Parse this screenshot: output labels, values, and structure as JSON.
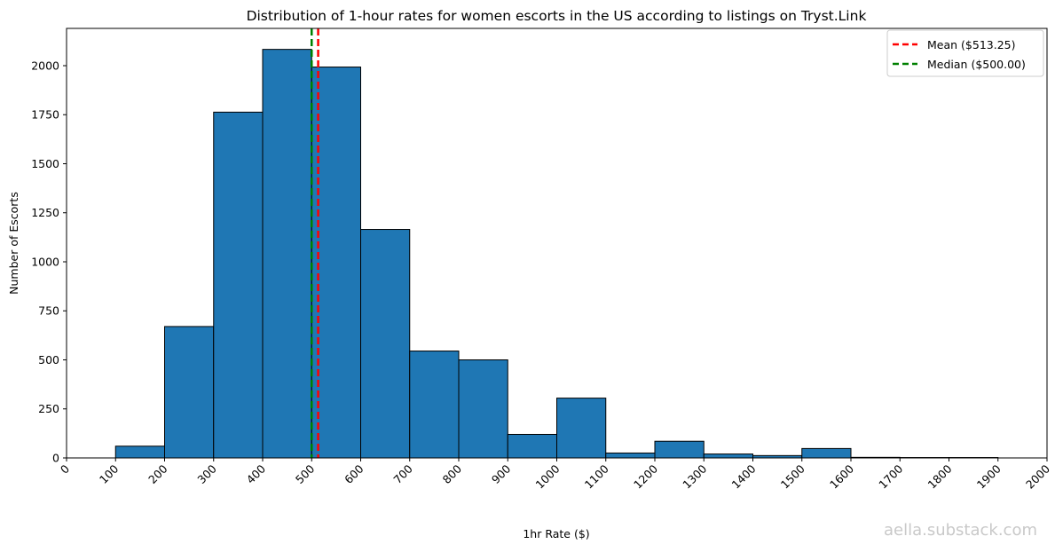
{
  "watermark": "aella.substack.com",
  "chart_data": {
    "type": "bar",
    "title": "Distribution of 1-hour rates for women escorts in the US according to listings on Tryst.Link",
    "xlabel": "1hr Rate ($)",
    "ylabel": "Number of Escorts",
    "bins": [
      {
        "start": 100,
        "end": 200,
        "count": 60
      },
      {
        "start": 200,
        "end": 300,
        "count": 670
      },
      {
        "start": 300,
        "end": 400,
        "count": 1763
      },
      {
        "start": 400,
        "end": 500,
        "count": 2083
      },
      {
        "start": 500,
        "end": 600,
        "count": 1993
      },
      {
        "start": 600,
        "end": 700,
        "count": 1165
      },
      {
        "start": 700,
        "end": 800,
        "count": 545
      },
      {
        "start": 800,
        "end": 900,
        "count": 500
      },
      {
        "start": 900,
        "end": 1000,
        "count": 120
      },
      {
        "start": 1000,
        "end": 1100,
        "count": 305
      },
      {
        "start": 1100,
        "end": 1200,
        "count": 25
      },
      {
        "start": 1200,
        "end": 1300,
        "count": 85
      },
      {
        "start": 1300,
        "end": 1400,
        "count": 20
      },
      {
        "start": 1400,
        "end": 1500,
        "count": 12
      },
      {
        "start": 1500,
        "end": 1600,
        "count": 48
      },
      {
        "start": 1600,
        "end": 1700,
        "count": 3
      },
      {
        "start": 1700,
        "end": 1800,
        "count": 2
      },
      {
        "start": 1800,
        "end": 1900,
        "count": 2
      }
    ],
    "xlim": [
      0,
      2000
    ],
    "ylim": [
      0,
      2190
    ],
    "xticks": [
      "0",
      "100",
      "200",
      "300",
      "400",
      "500",
      "600",
      "700",
      "800",
      "900",
      "1000",
      "1100",
      "1200",
      "1300",
      "1400",
      "1500",
      "1600",
      "1700",
      "1800",
      "1900",
      "2000"
    ],
    "yticks": [
      "0",
      "250",
      "500",
      "750",
      "1000",
      "1250",
      "1500",
      "1750",
      "2000"
    ],
    "bar_color": "#1f77b4",
    "edge_color": "#000000",
    "grid": false,
    "reference_lines": [
      {
        "label": "Mean ($513.25)",
        "x": 513.25,
        "color": "#ff0000",
        "style": "dashed"
      },
      {
        "label": "Median ($500.00)",
        "x": 500,
        "color": "#008000",
        "style": "dashed"
      }
    ],
    "legend_position": "top-right"
  }
}
